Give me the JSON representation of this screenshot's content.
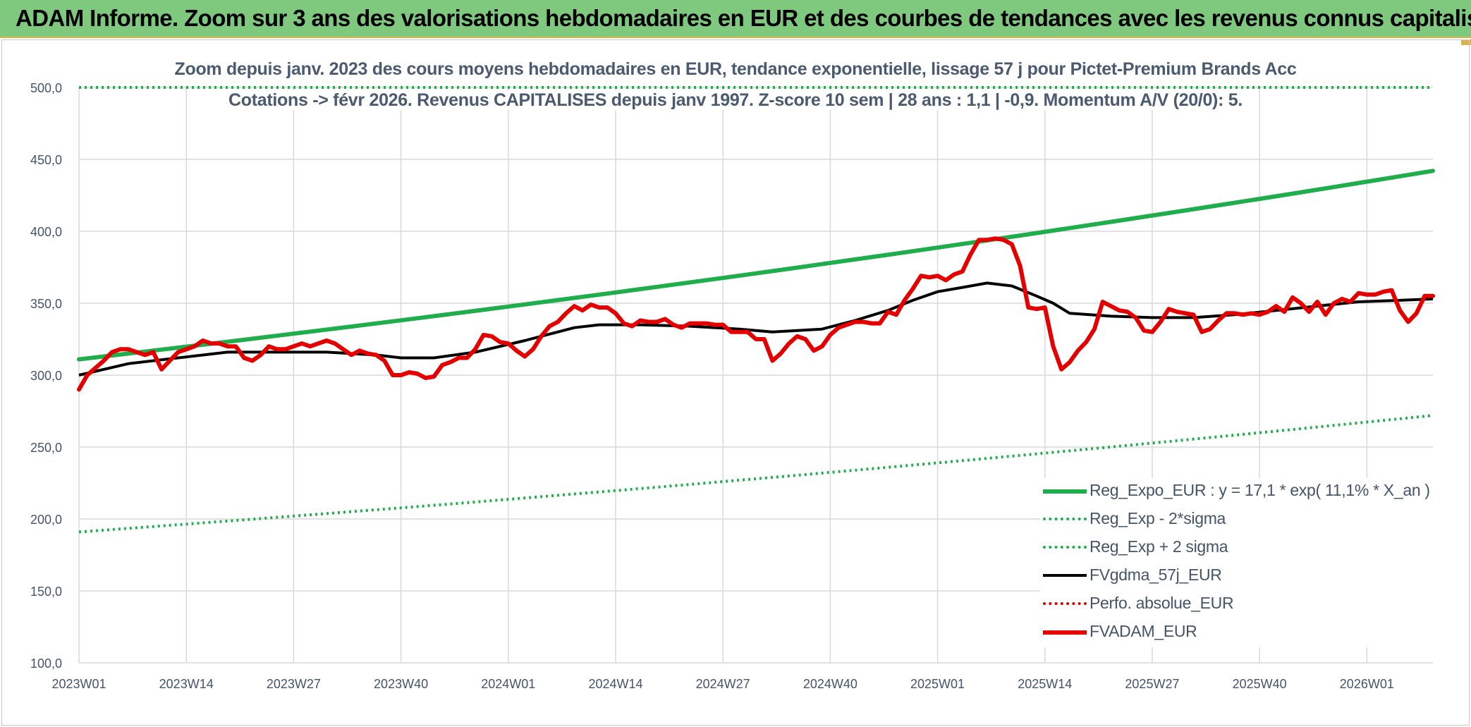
{
  "header": {
    "title": "ADAM Informe. Zoom sur 3 ans des valorisations hebdomadaires en EUR et des courbes de tendances avec les revenus connus capitalisés"
  },
  "chart_data": {
    "type": "line",
    "title_line1": "Zoom depuis janv. 2023 des cours moyens hebdomadaires en EUR, tendance exponentielle, lissage 57 j pour Pictet-Premium Brands Acc",
    "title_line2": "Cotations -> févr 2026. Revenus CAPITALISES depuis janv 1997. Z-score 10 sem | 28 ans : 1,1 | -0,9. Momentum A/V (20/0): 5.",
    "ylim": [
      100,
      500
    ],
    "yticks": [
      "100,0",
      "150,0",
      "200,0",
      "250,0",
      "300,0",
      "350,0",
      "400,0",
      "450,0",
      "500,0"
    ],
    "ytick_values": [
      100,
      150,
      200,
      250,
      300,
      350,
      400,
      450,
      500
    ],
    "xlim": [
      0,
      164
    ],
    "xticks": [
      "2023W01",
      "2023W14",
      "2023W27",
      "2023W40",
      "2024W01",
      "2024W14",
      "2024W27",
      "2024W40",
      "2025W01",
      "2025W14",
      "2025W27",
      "2025W40",
      "2026W01"
    ],
    "xtick_values": [
      0,
      13,
      26,
      39,
      52,
      65,
      78,
      91,
      104,
      117,
      130,
      143,
      156
    ],
    "legend_position": "bottom-right",
    "series": [
      {
        "name": "Reg_Expo_EUR : y = 17,1 * exp( 11,1% *  X_an )",
        "style": "thick-solid",
        "color": "#1fae4b",
        "x": [
          0,
          164
        ],
        "values": [
          311,
          442
        ],
        "shape": "exponential"
      },
      {
        "name": "Reg_Exp - 2*sigma",
        "style": "dotted",
        "color": "#1fae4b",
        "x": [
          0,
          164
        ],
        "values": [
          191,
          272
        ],
        "shape": "exponential"
      },
      {
        "name": "Reg_Exp + 2 sigma",
        "style": "dotted",
        "color": "#1fae4b",
        "x": [
          0,
          164
        ],
        "values": [
          500,
          500
        ],
        "shape": "exponential"
      },
      {
        "name": "FVgdma_57j_EUR",
        "style": "solid",
        "color": "#000000",
        "x": [
          0,
          6,
          12,
          18,
          24,
          30,
          36,
          39,
          43,
          48,
          54,
          60,
          63,
          68,
          74,
          80,
          84,
          90,
          94,
          98,
          101,
          104,
          107,
          110,
          113,
          116,
          118,
          120,
          125,
          130,
          135,
          140,
          145,
          150,
          155,
          160,
          164
        ],
        "values": [
          300,
          308,
          312,
          316,
          316,
          316,
          314,
          312,
          312,
          316,
          324,
          333,
          335,
          335,
          334,
          332,
          330,
          332,
          338,
          345,
          352,
          358,
          361,
          364,
          362,
          355,
          350,
          343,
          341,
          340,
          340,
          342,
          345,
          348,
          351,
          352,
          353
        ]
      },
      {
        "name": "Perfo. absolue_EUR",
        "style": "dotted",
        "color": "#e00000",
        "x": [],
        "values": []
      },
      {
        "name": "FVADAM_EUR",
        "style": "thick-solid",
        "color": "#e50000",
        "x": [
          0,
          1,
          2,
          3,
          4,
          5,
          6,
          7,
          8,
          9,
          10,
          11,
          12,
          13,
          14,
          15,
          16,
          17,
          18,
          19,
          20,
          21,
          22,
          23,
          24,
          25,
          26,
          27,
          28,
          29,
          30,
          31,
          32,
          33,
          34,
          35,
          36,
          37,
          38,
          39,
          40,
          41,
          42,
          43,
          44,
          45,
          46,
          47,
          48,
          49,
          50,
          51,
          52,
          53,
          54,
          55,
          56,
          57,
          58,
          59,
          60,
          61,
          62,
          63,
          64,
          65,
          66,
          67,
          68,
          69,
          70,
          71,
          72,
          73,
          74,
          75,
          76,
          77,
          78,
          79,
          80,
          81,
          82,
          83,
          84,
          85,
          86,
          87,
          88,
          89,
          90,
          91,
          92,
          93,
          94,
          95,
          96,
          97,
          98,
          99,
          100,
          101,
          102,
          103,
          104,
          105,
          106,
          107,
          108,
          109,
          110,
          111,
          112,
          113,
          114,
          115,
          116,
          117,
          118,
          119,
          120,
          121,
          122,
          123,
          124,
          125,
          126,
          127,
          128,
          129,
          130,
          131,
          132,
          133,
          134,
          135,
          136,
          137,
          138,
          139,
          140,
          141,
          142,
          143,
          144,
          145,
          146,
          147,
          148,
          149,
          150,
          151,
          152,
          153,
          154,
          155,
          156,
          157,
          158,
          159,
          160,
          161,
          162,
          163,
          164
        ],
        "values": [
          290,
          300,
          305,
          310,
          316,
          318,
          318,
          316,
          314,
          316,
          304,
          310,
          316,
          318,
          320,
          324,
          322,
          322,
          320,
          320,
          312,
          310,
          314,
          320,
          318,
          318,
          320,
          322,
          320,
          322,
          324,
          322,
          318,
          314,
          317,
          315,
          314,
          310,
          300,
          300,
          302,
          301,
          298,
          299,
          307,
          309,
          312,
          312,
          318,
          328,
          327,
          323,
          322,
          317,
          313,
          318,
          327,
          334,
          337,
          343,
          348,
          345,
          349,
          347,
          347,
          343,
          336,
          334,
          338,
          337,
          337,
          339,
          335,
          333,
          336,
          336,
          336,
          335,
          335,
          330,
          330,
          330,
          325,
          325,
          310,
          315,
          322,
          327,
          325,
          317,
          320,
          328,
          333,
          335,
          337,
          337,
          336,
          336,
          344,
          342,
          352,
          360,
          369,
          368,
          369,
          366,
          370,
          372,
          384,
          394,
          394,
          395,
          394,
          391,
          376,
          347,
          346,
          347,
          320,
          304,
          309,
          317,
          323,
          332,
          351,
          348,
          345,
          344,
          340,
          331,
          330,
          337,
          346,
          344,
          343,
          342,
          330,
          332,
          338,
          343,
          343,
          342,
          343,
          342,
          344,
          348,
          344,
          354,
          350,
          344,
          351,
          342,
          350,
          353,
          351,
          357,
          356,
          356,
          358,
          359,
          345,
          337,
          343,
          355,
          355
        ]
      }
    ]
  }
}
